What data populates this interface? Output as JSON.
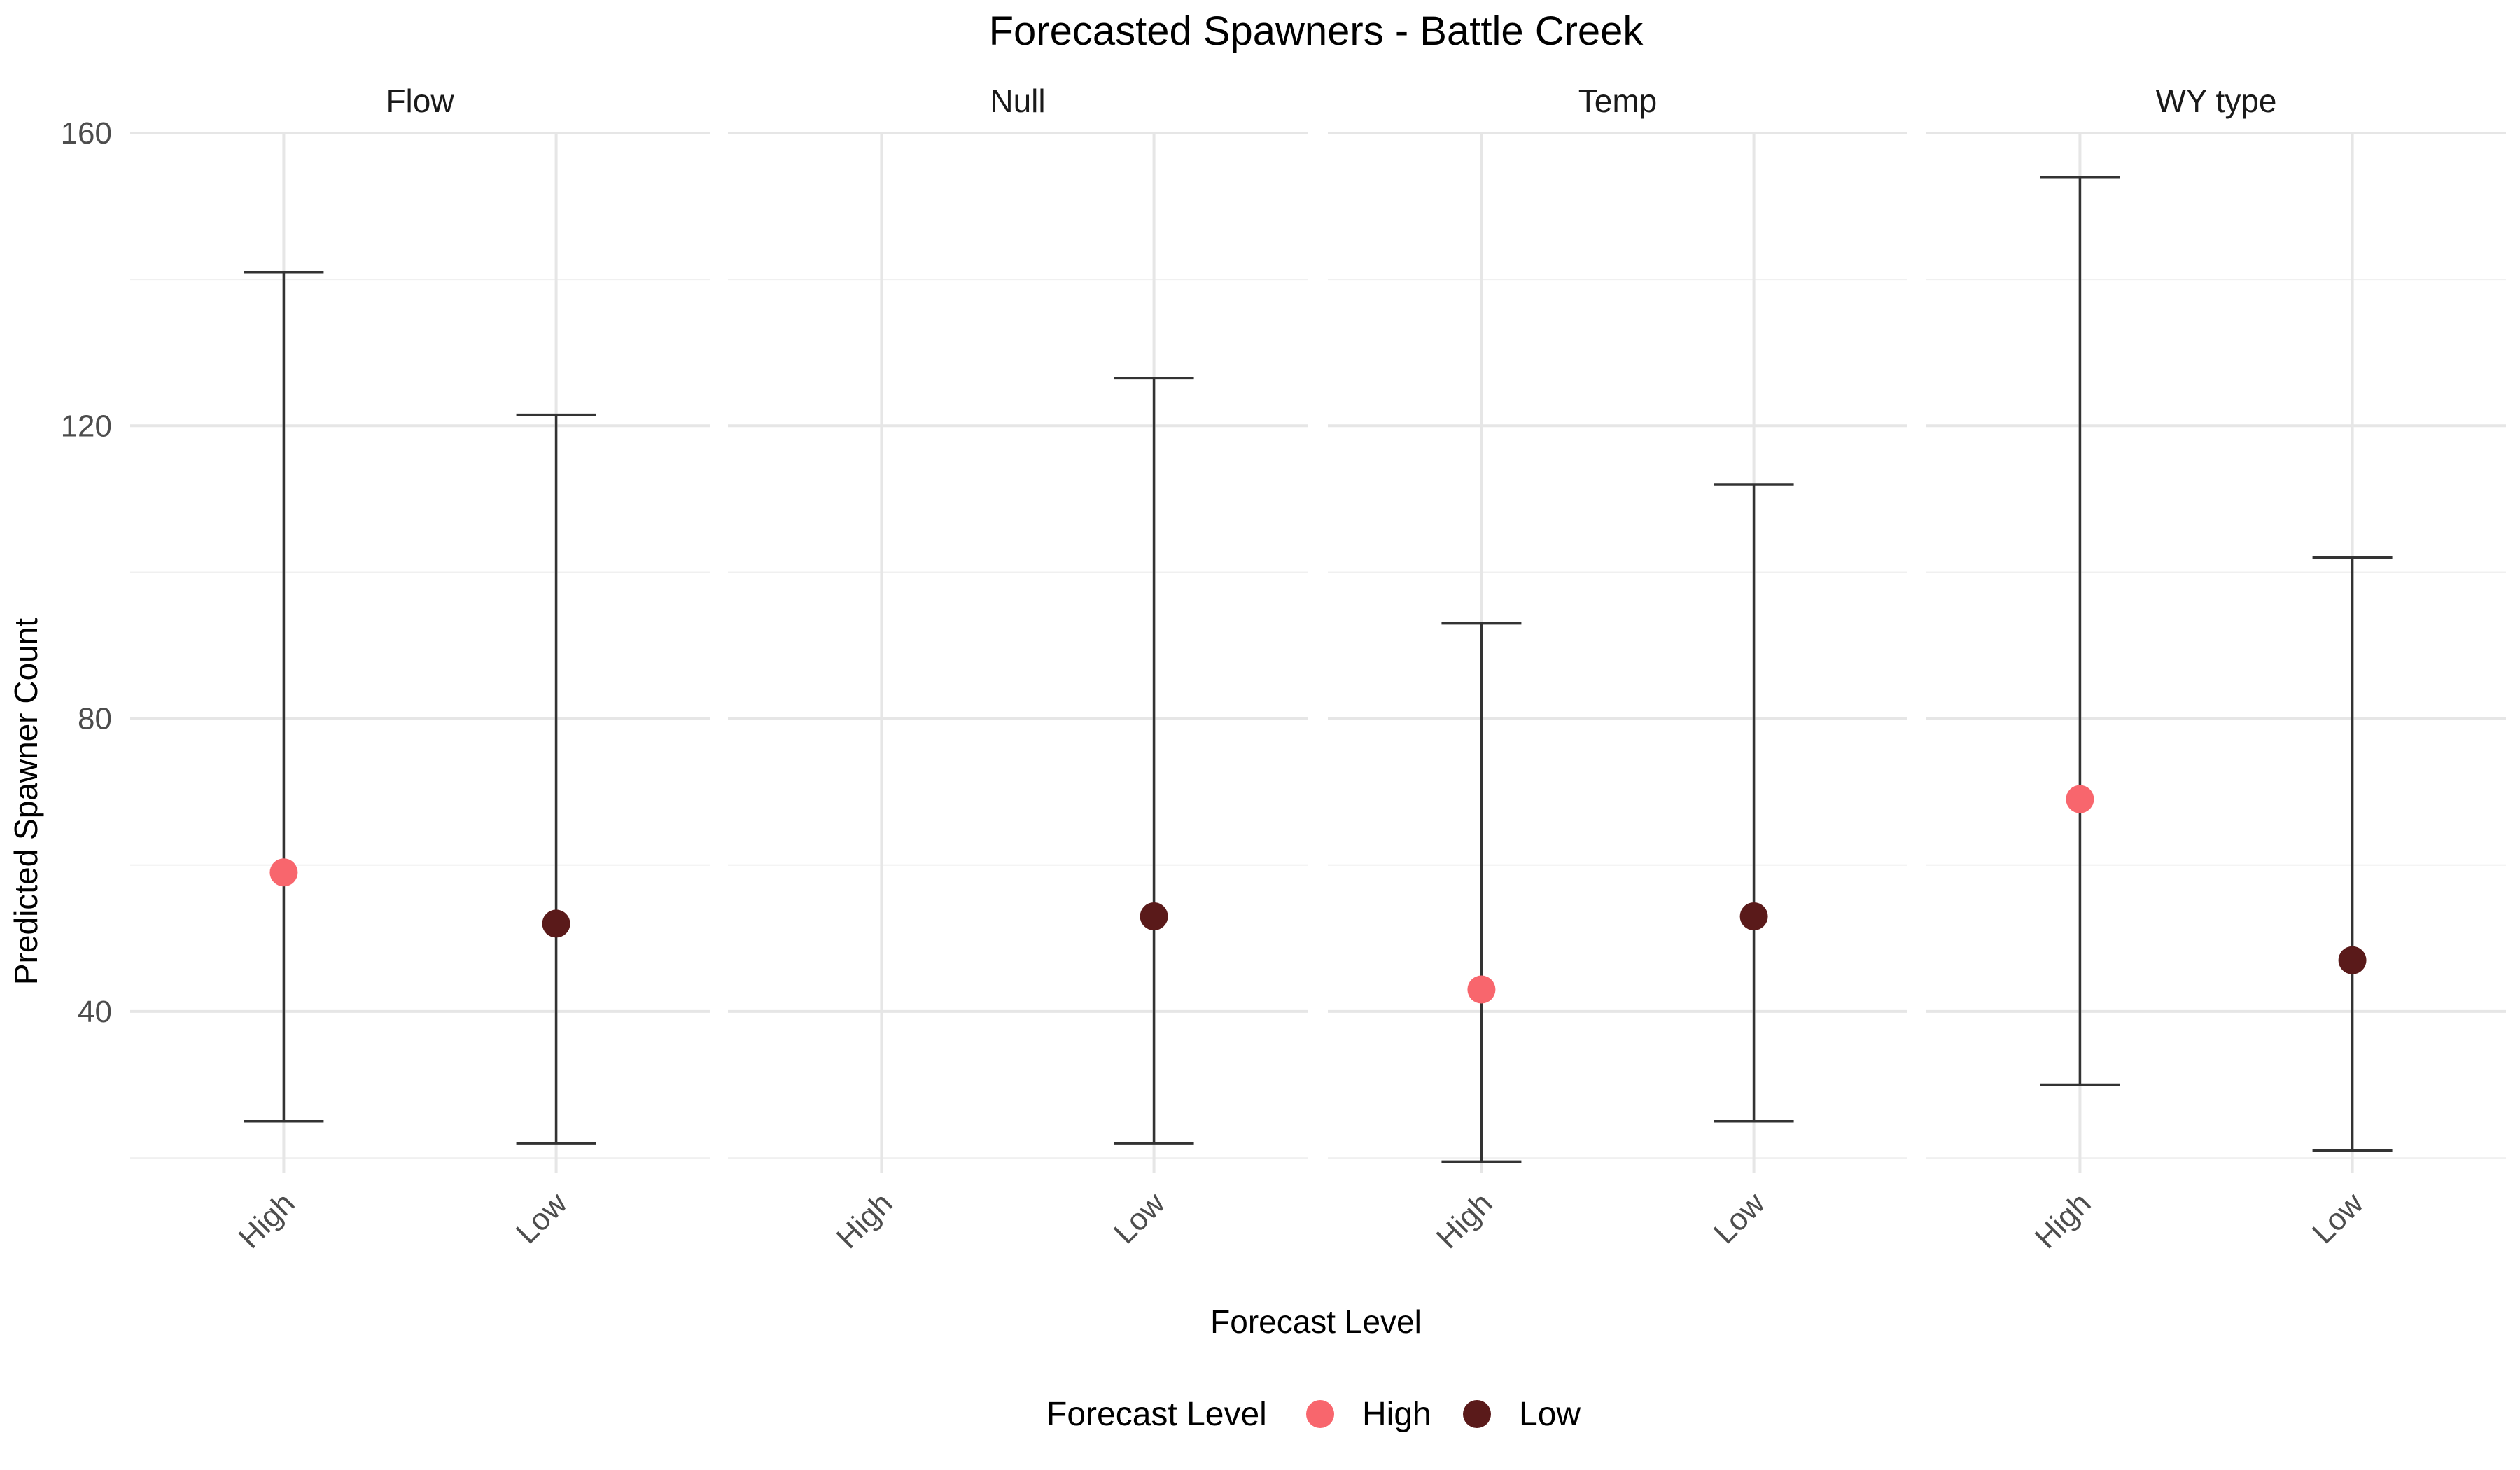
{
  "chart_data": {
    "type": "scatter",
    "title": "Forecasted Spawners - Battle Creek",
    "xlabel": "Forecast Level",
    "ylabel": "Predicted Spawner Count",
    "ylim": [
      18,
      160
    ],
    "yticks": [
      40,
      80,
      120,
      160
    ],
    "categories": [
      "High",
      "Low"
    ],
    "grid": true,
    "legend": {
      "title": "Forecast Level",
      "position": "bottom",
      "entries": [
        {
          "label": "High",
          "color": "#F8666D"
        },
        {
          "label": "Low",
          "color": "#5A1A1A"
        }
      ]
    },
    "panels": [
      {
        "name": "Flow",
        "points": [
          {
            "level": "High",
            "value": 59,
            "lower": 25,
            "upper": 141
          },
          {
            "level": "Low",
            "value": 52,
            "lower": 22,
            "upper": 121.5
          }
        ]
      },
      {
        "name": "Null",
        "points": [
          {
            "level": "Low",
            "value": 53,
            "lower": 22,
            "upper": 126.5
          }
        ]
      },
      {
        "name": "Temp",
        "points": [
          {
            "level": "High",
            "value": 43,
            "lower": 19.5,
            "upper": 93
          },
          {
            "level": "Low",
            "value": 53,
            "lower": 25,
            "upper": 112
          }
        ]
      },
      {
        "name": "WY type",
        "points": [
          {
            "level": "High",
            "value": 69,
            "lower": 30,
            "upper": 154
          },
          {
            "level": "Low",
            "value": 47,
            "lower": 21,
            "upper": 102
          }
        ]
      }
    ]
  }
}
